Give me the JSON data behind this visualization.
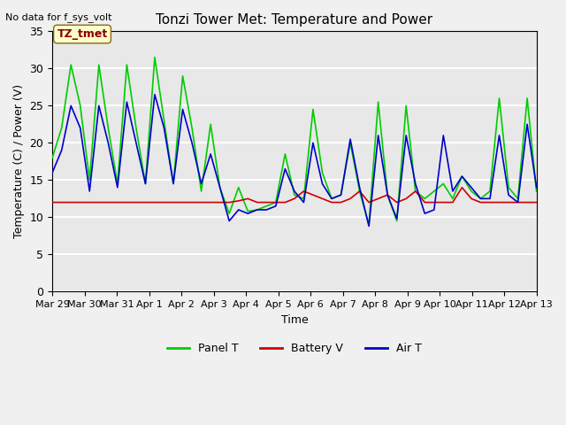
{
  "title": "Tonzi Tower Met: Temperature and Power",
  "xlabel": "Time",
  "ylabel": "Temperature (C) / Power (V)",
  "top_left_text": "No data for f_sys_volt",
  "annotation_label": "TZ_tmet",
  "ylim": [
    0,
    35
  ],
  "yticks": [
    0,
    5,
    10,
    15,
    20,
    25,
    30,
    35
  ],
  "background_color": "#e8e8e8",
  "plot_bg_color": "#e8e8e8",
  "grid_color": "#ffffff",
  "x_tick_labels": [
    "Mar 29",
    "Mar 30",
    "Mar 31",
    "Apr 1",
    "Apr 2",
    "Apr 3",
    "Apr 4",
    "Apr 5",
    "Apr 6",
    "Apr 7",
    "Apr 8",
    "Apr 9",
    "Apr 10",
    "Apr 11",
    "Apr 12",
    "Apr 13"
  ],
  "panel_T": [
    18.0,
    22.0,
    30.5,
    25.0,
    15.0,
    30.5,
    22.0,
    14.5,
    30.5,
    22.0,
    14.5,
    31.5,
    23.0,
    14.5,
    29.0,
    22.0,
    13.5,
    22.5,
    14.0,
    10.5,
    14.0,
    10.8,
    11.0,
    11.5,
    12.0,
    18.5,
    13.0,
    12.5,
    24.5,
    16.0,
    12.5,
    13.0,
    20.0,
    13.5,
    9.0,
    25.5,
    13.0,
    9.5,
    25.0,
    13.5,
    12.5,
    13.5,
    14.5,
    12.5,
    15.5,
    13.5,
    12.5,
    13.5,
    26.0,
    14.0,
    12.5,
    26.0,
    13.5
  ],
  "battery_V": [
    12.0,
    12.0,
    12.0,
    12.0,
    12.0,
    12.0,
    12.0,
    12.0,
    12.0,
    12.0,
    12.0,
    12.0,
    12.0,
    12.0,
    12.0,
    12.0,
    12.0,
    12.0,
    12.0,
    12.0,
    12.2,
    12.5,
    12.0,
    12.0,
    12.0,
    12.0,
    12.5,
    13.5,
    13.0,
    12.5,
    12.0,
    12.0,
    12.5,
    13.5,
    12.0,
    12.5,
    13.0,
    12.0,
    12.5,
    13.5,
    12.0,
    12.0,
    12.0,
    12.0,
    14.0,
    12.5,
    12.0,
    12.0,
    12.0,
    12.0,
    12.0,
    12.0,
    12.0
  ],
  "air_T": [
    16.0,
    19.0,
    25.0,
    22.0,
    13.5,
    25.0,
    20.0,
    14.0,
    25.5,
    20.0,
    14.5,
    26.5,
    22.0,
    14.5,
    24.5,
    20.0,
    14.5,
    18.5,
    14.0,
    9.5,
    11.0,
    10.5,
    11.0,
    11.0,
    11.5,
    16.5,
    13.5,
    12.0,
    20.0,
    14.5,
    12.5,
    13.0,
    20.5,
    14.0,
    8.8,
    21.0,
    13.0,
    9.8,
    21.0,
    14.5,
    10.5,
    11.0,
    21.0,
    13.5,
    15.5,
    14.0,
    12.5,
    12.5,
    21.0,
    13.0,
    12.0,
    22.5,
    14.0
  ],
  "panel_color": "#00cc00",
  "battery_color": "#cc0000",
  "air_color": "#0000cc",
  "legend_panel": "Panel T",
  "legend_battery": "Battery V",
  "legend_air": "Air T"
}
